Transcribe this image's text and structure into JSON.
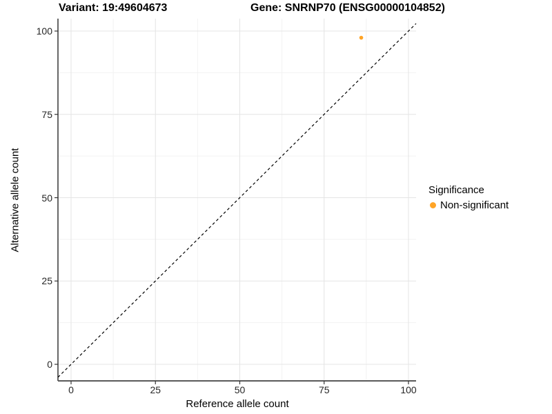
{
  "chart_data": {
    "type": "scatter",
    "title_left": "Variant: 19:49604673",
    "title_right": "Gene: SNRNP70 (ENSG00000104852)",
    "xlabel": "Reference allele count",
    "ylabel": "Alternative allele count",
    "xlim": [
      -4,
      103
    ],
    "ylim": [
      -5,
      104
    ],
    "x_ticks": [
      0,
      25,
      50,
      75,
      100
    ],
    "y_ticks": [
      0,
      25,
      50,
      75,
      100
    ],
    "x_minor_ticks": [
      12.5,
      37.5,
      62.5,
      87.5
    ],
    "y_minor_ticks": [
      12.5,
      37.5,
      62.5,
      87.5
    ],
    "grid": true,
    "points": [
      {
        "x": 86,
        "y": 98,
        "series": "Non-significant"
      }
    ],
    "identity_line": {
      "equation": "y = x",
      "style": "dashed",
      "color": "#000000"
    },
    "legend": {
      "title": "Significance",
      "position": "right",
      "items": [
        {
          "label": "Non-significant",
          "color": "#FFA426"
        }
      ]
    },
    "colors": {
      "background": "#FFFFFF",
      "grid_major": "#E4E4E4",
      "grid_minor": "#F2F2F2",
      "axis_line_left": "#000000",
      "axis_line_bottom": "#595959",
      "tick_mark": "#333333",
      "tick_text": "#262626"
    }
  }
}
